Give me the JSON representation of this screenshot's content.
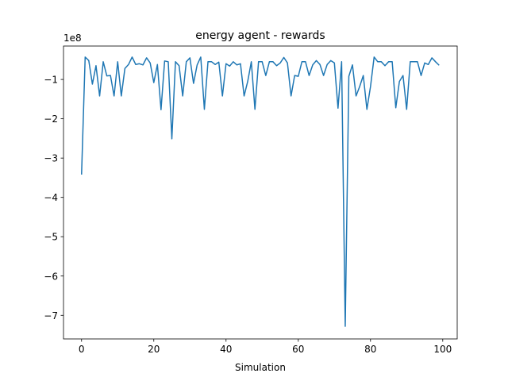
{
  "chart_data": {
    "type": "line",
    "title": "energy agent - rewards",
    "xlabel": "Simulation",
    "ylabel": "",
    "y_offset_label": "1e8",
    "xlim": [
      -5,
      104
    ],
    "ylim": [
      -7.6,
      -0.15
    ],
    "grid": false,
    "x_ticks": [
      0,
      20,
      40,
      60,
      80,
      100
    ],
    "y_ticks": [
      -1,
      -2,
      -3,
      -4,
      -5,
      -6,
      -7
    ],
    "series_color": "#1f77b4",
    "series": [
      {
        "x": [
          0,
          1,
          2,
          3,
          4,
          5,
          6,
          7,
          8,
          9,
          10,
          11,
          12,
          13,
          14,
          15,
          16,
          17,
          18,
          19,
          20,
          21,
          22,
          23,
          24,
          25,
          26,
          27,
          28,
          29,
          30,
          31,
          32,
          33,
          34,
          35,
          36,
          37,
          38,
          39,
          40,
          41,
          42,
          43,
          44,
          45,
          46,
          47,
          48,
          49,
          50,
          51,
          52,
          53,
          54,
          55,
          56,
          57,
          58,
          59,
          60,
          61,
          62,
          63,
          64,
          65,
          66,
          67,
          68,
          69,
          70,
          71,
          72,
          73,
          74,
          75,
          76,
          77,
          78,
          79,
          80,
          81,
          82,
          83,
          84,
          85,
          86,
          87,
          88,
          89,
          90,
          91,
          92,
          93,
          94,
          95,
          96,
          97,
          98,
          99
        ],
        "values": [
          -3.42,
          -0.43,
          -0.52,
          -1.12,
          -0.65,
          -1.42,
          -0.55,
          -0.91,
          -0.9,
          -1.42,
          -0.55,
          -1.42,
          -0.72,
          -0.62,
          -0.43,
          -0.62,
          -0.6,
          -0.63,
          -0.45,
          -0.58,
          -1.08,
          -0.62,
          -1.77,
          -0.53,
          -0.55,
          -2.51,
          -0.55,
          -0.65,
          -1.42,
          -0.55,
          -0.45,
          -1.1,
          -0.63,
          -0.43,
          -1.76,
          -0.55,
          -0.55,
          -0.62,
          -0.56,
          -1.42,
          -0.6,
          -0.66,
          -0.55,
          -0.63,
          -0.6,
          -1.42,
          -1.05,
          -0.55,
          -1.76,
          -0.55,
          -0.55,
          -0.9,
          -0.55,
          -0.55,
          -0.65,
          -0.58,
          -0.44,
          -0.58,
          -1.42,
          -0.9,
          -0.92,
          -0.55,
          -0.55,
          -0.9,
          -0.63,
          -0.52,
          -0.62,
          -0.9,
          -0.62,
          -0.52,
          -0.58,
          -1.73,
          -0.55,
          -7.28,
          -0.92,
          -0.63,
          -1.42,
          -1.18,
          -0.9,
          -1.76,
          -1.18,
          -0.43,
          -0.55,
          -0.55,
          -0.65,
          -0.55,
          -0.55,
          -1.72,
          -1.05,
          -0.9,
          -1.76,
          -0.55,
          -0.55,
          -0.55,
          -0.9,
          -0.58,
          -0.62,
          -0.45,
          -0.55,
          -0.64
        ]
      }
    ]
  }
}
